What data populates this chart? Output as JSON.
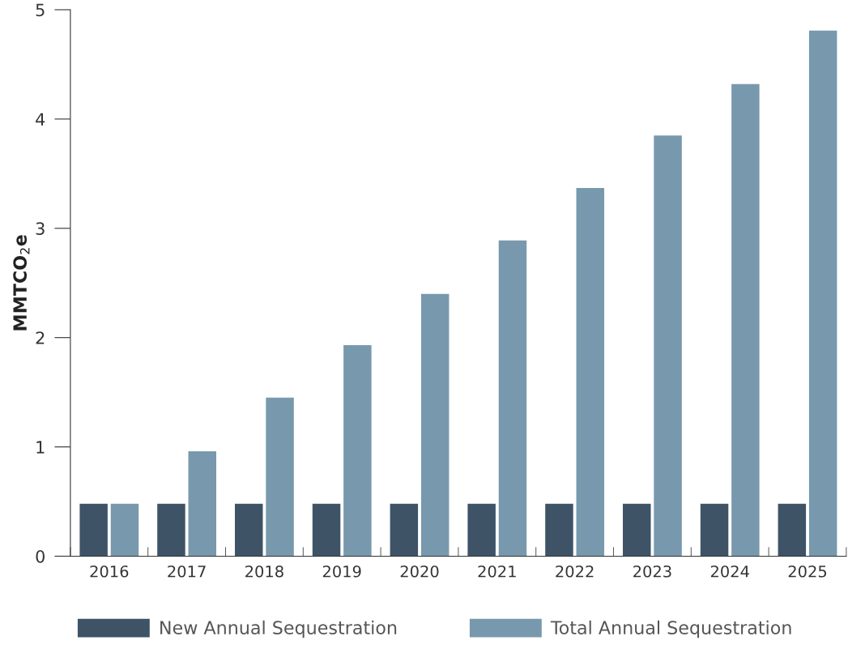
{
  "chart_data": {
    "type": "bar",
    "ylabel": "MMTCO$_{2}$e",
    "categories": [
      "2016",
      "2017",
      "2018",
      "2019",
      "2020",
      "2021",
      "2022",
      "2023",
      "2024",
      "2025"
    ],
    "series": [
      {
        "name": "New Annual Sequestration",
        "color": "#3e5366",
        "values": [
          0.48,
          0.48,
          0.48,
          0.48,
          0.48,
          0.48,
          0.48,
          0.48,
          0.48,
          0.48
        ]
      },
      {
        "name": "Total Annual Sequestration",
        "color": "#7899ad",
        "values": [
          0.48,
          0.96,
          1.45,
          1.93,
          2.4,
          2.89,
          3.37,
          3.85,
          4.32,
          4.81
        ]
      }
    ],
    "ylim": [
      0,
      5
    ],
    "yticks": [
      0,
      1,
      2,
      3,
      4,
      5
    ],
    "grid": false,
    "legend": "bottom"
  }
}
